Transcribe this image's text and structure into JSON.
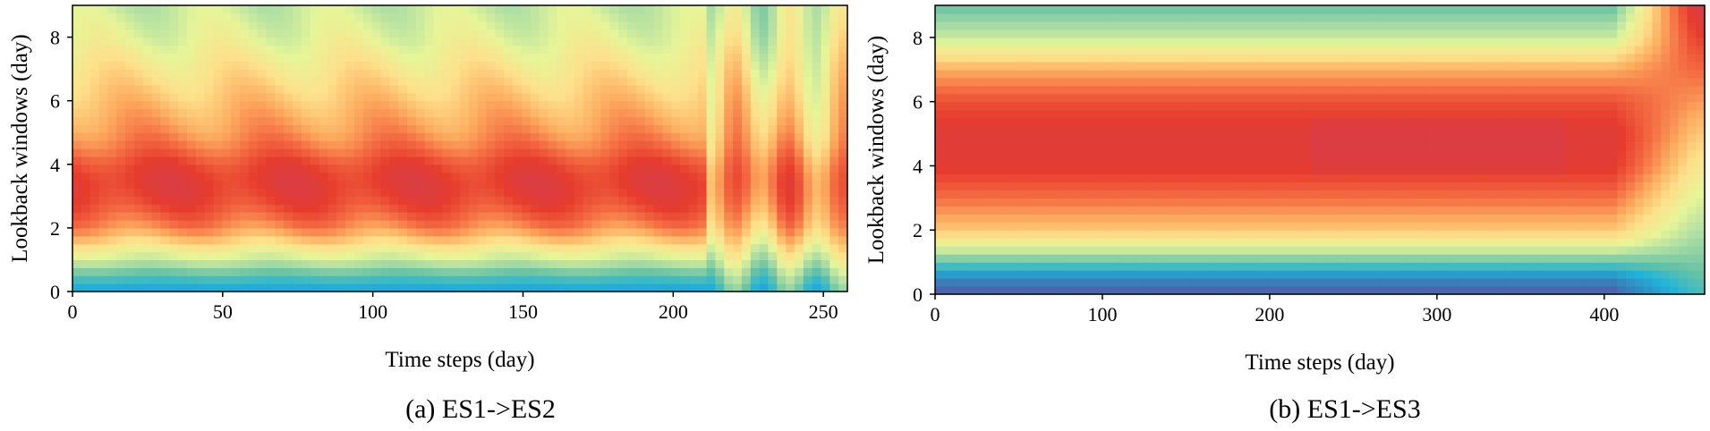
{
  "chart_data": [
    {
      "type": "heatmap",
      "caption": "(a) ES1->ES2",
      "xlabel": "Time steps (day)",
      "ylabel": "Lookback windows (day)",
      "xlim": [
        0,
        258
      ],
      "ylim": [
        0,
        9
      ],
      "xticks": [
        0,
        50,
        100,
        150,
        200,
        250
      ],
      "yticks": [
        0,
        2,
        4,
        6,
        8
      ],
      "colormap": "Spectral_r",
      "z_profile_by_lookback": [
        {
          "y": 0.0,
          "z": 0.15
        },
        {
          "y": 0.5,
          "z": 0.28
        },
        {
          "y": 1.0,
          "z": 0.45
        },
        {
          "y": 1.5,
          "z": 0.6
        },
        {
          "y": 2.0,
          "z": 0.75
        },
        {
          "y": 2.5,
          "z": 0.84
        },
        {
          "y": 3.0,
          "z": 0.9
        },
        {
          "y": 3.5,
          "z": 0.92
        },
        {
          "y": 4.0,
          "z": 0.88
        },
        {
          "y": 4.5,
          "z": 0.8
        },
        {
          "y": 5.0,
          "z": 0.74
        },
        {
          "y": 6.0,
          "z": 0.66
        },
        {
          "y": 7.0,
          "z": 0.58
        },
        {
          "y": 8.0,
          "z": 0.5
        },
        {
          "y": 9.0,
          "z": 0.45
        }
      ]
    },
    {
      "type": "heatmap",
      "caption": "(b) ES1->ES3",
      "xlabel": "Time steps (day)",
      "ylabel": "Lookback windows (day)",
      "xlim": [
        0,
        460
      ],
      "ylim": [
        0,
        9
      ],
      "xticks": [
        0,
        100,
        200,
        300,
        400
      ],
      "yticks": [
        0,
        2,
        4,
        6,
        8
      ],
      "colormap": "Spectral_r",
      "regime_change_at_x": 405,
      "z_profile_by_lookback": [
        {
          "y": 0.0,
          "z": 0.02
        },
        {
          "y": 0.5,
          "z": 0.1
        },
        {
          "y": 1.0,
          "z": 0.3
        },
        {
          "y": 1.5,
          "z": 0.5
        },
        {
          "y": 2.0,
          "z": 0.65
        },
        {
          "y": 3.0,
          "z": 0.8
        },
        {
          "y": 4.0,
          "z": 0.92
        },
        {
          "y": 5.0,
          "z": 0.94
        },
        {
          "y": 6.0,
          "z": 0.86
        },
        {
          "y": 7.0,
          "z": 0.7
        },
        {
          "y": 8.0,
          "z": 0.45
        },
        {
          "y": 9.0,
          "z": 0.3
        }
      ]
    }
  ]
}
